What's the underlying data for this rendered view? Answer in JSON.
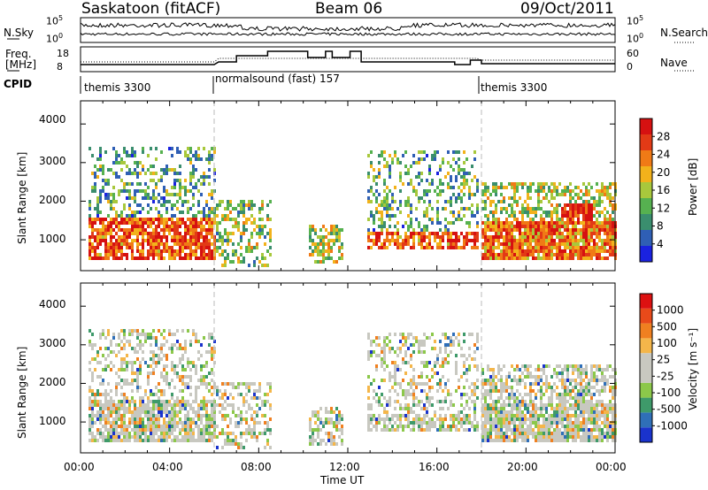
{
  "header": {
    "station": "Saskatoon (fitACF)",
    "beam": "Beam 06",
    "date": "09/Oct/2011"
  },
  "top_panels": {
    "nsky_label": "N.Sky",
    "nsky_ticks": [
      "10^5",
      "10^0"
    ],
    "nsearch_label": "N.Search",
    "nsearch_ticks": [
      "10^5",
      "10^0"
    ],
    "freq_label_1": "Freq.",
    "freq_label_2": "[MHz]",
    "freq_ticks": [
      "18",
      "8"
    ],
    "nave_label": "Nave",
    "nave_ticks": [
      "60",
      "0"
    ],
    "cpid_label": "CPID",
    "cpid_segments": [
      "themis 3300",
      "normalsound (fast) 157",
      "themis 3300"
    ]
  },
  "chart_data": [
    {
      "type": "heatmap",
      "name": "power",
      "ylabel": "Slant Range [km]",
      "yticks": [
        "1000",
        "2000",
        "3000",
        "4000"
      ],
      "ylim": [
        200,
        4600
      ],
      "colorbar_label": "Power [dB]",
      "colorbar_ticks": [
        "4",
        "8",
        "12",
        "16",
        "20",
        "24",
        "28"
      ],
      "colorbar_colors": [
        "#1a22e0",
        "#2f5fb5",
        "#3a8e6e",
        "#56b150",
        "#a8c83c",
        "#f2b21b",
        "#f07a16",
        "#e23a16",
        "#d61111"
      ]
    },
    {
      "type": "heatmap",
      "name": "velocity",
      "ylabel": "Slant Range [km]",
      "yticks": [
        "1000",
        "2000",
        "3000",
        "4000"
      ],
      "ylim": [
        200,
        4600
      ],
      "colorbar_label": "Velocity [m s⁻¹]",
      "colorbar_ticks": [
        "1000",
        "500",
        "100",
        "25",
        "-25",
        "-100",
        "-500",
        "-1000"
      ],
      "colorbar_colors": [
        "#1a33cc",
        "#2f6fb8",
        "#3e9a6a",
        "#8cc84a",
        "#c8c8c0",
        "#c8c8c0",
        "#f4b64a",
        "#f08020",
        "#e84a1a",
        "#dd1111"
      ]
    }
  ],
  "xaxis": {
    "label": "Time UT",
    "ticks": [
      "00:00",
      "04:00",
      "08:00",
      "12:00",
      "16:00",
      "20:00",
      "00:00"
    ]
  }
}
